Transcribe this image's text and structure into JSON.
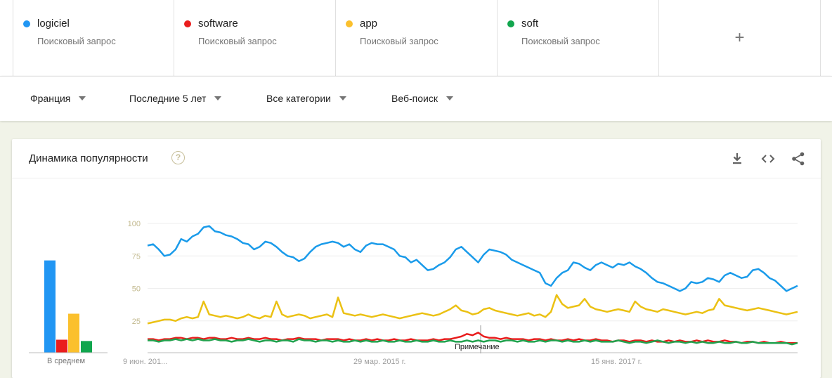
{
  "terms": [
    {
      "name": "logiciel",
      "type": "Поисковый запрос",
      "color": "#2196f3"
    },
    {
      "name": "software",
      "type": "Поисковый запрос",
      "color": "#ea1d1d"
    },
    {
      "name": "app",
      "type": "Поисковый запрос",
      "color": "#fbc02d"
    },
    {
      "name": "soft",
      "type": "Поисковый запрос",
      "color": "#11a64e"
    }
  ],
  "add_term": "+",
  "filters": {
    "region": "Франция",
    "period": "Последние 5 лет",
    "category": "Все категории",
    "search_type": "Веб-поиск"
  },
  "card": {
    "title": "Динамика популярности",
    "help": "?",
    "tools": [
      "download-icon",
      "embed-code-icon",
      "share-icon"
    ]
  },
  "average": {
    "label": "В среднем",
    "values": [
      71,
      10,
      30,
      9
    ]
  },
  "chart_data": {
    "type": "line",
    "y_ticks": [
      "100",
      "75",
      "50",
      "25"
    ],
    "ylim": [
      0,
      100
    ],
    "x_ticks": [
      "9 июн. 201...",
      "29 мар. 2015 г.",
      "15 янв. 2017 г."
    ],
    "annotation": "Примечание",
    "grid": true,
    "series": [
      {
        "color": "#1a9bea",
        "values": [
          83,
          84,
          80,
          75,
          76,
          80,
          88,
          86,
          90,
          92,
          97,
          98,
          94,
          93,
          91,
          90,
          88,
          85,
          84,
          80,
          82,
          86,
          85,
          82,
          78,
          75,
          74,
          71,
          73,
          78,
          82,
          84,
          85,
          86,
          85,
          82,
          84,
          80,
          78,
          83,
          85,
          84,
          84,
          82,
          80,
          75,
          74,
          70,
          72,
          68,
          64,
          65,
          68,
          70,
          74,
          80,
          82,
          78,
          74,
          70,
          76,
          80,
          79,
          78,
          76,
          72,
          70,
          68,
          66,
          64,
          62,
          54,
          52,
          58,
          62,
          64,
          70,
          69,
          66,
          64,
          68,
          70,
          68,
          66,
          69,
          68,
          70,
          67,
          65,
          62,
          58,
          55,
          54,
          52,
          50,
          48,
          50,
          55,
          54,
          55,
          58,
          57,
          55,
          60,
          62,
          60,
          58,
          59,
          64,
          65,
          62,
          58,
          56,
          52,
          48,
          50,
          52
        ]
      },
      {
        "color": "#ebc114",
        "values": [
          23,
          24,
          25,
          26,
          26,
          25,
          27,
          28,
          27,
          28,
          40,
          30,
          29,
          28,
          29,
          28,
          27,
          28,
          30,
          28,
          27,
          29,
          28,
          40,
          30,
          28,
          29,
          30,
          29,
          27,
          28,
          29,
          30,
          28,
          43,
          31,
          30,
          29,
          30,
          29,
          28,
          29,
          30,
          29,
          28,
          27,
          28,
          29,
          30,
          31,
          30,
          29,
          30,
          32,
          34,
          37,
          33,
          32,
          30,
          31,
          34,
          35,
          33,
          32,
          31,
          30,
          29,
          30,
          31,
          29,
          30,
          28,
          32,
          45,
          38,
          35,
          36,
          37,
          42,
          36,
          34,
          33,
          32,
          33,
          34,
          33,
          32,
          40,
          36,
          34,
          33,
          32,
          34,
          33,
          32,
          31,
          30,
          31,
          32,
          31,
          33,
          34,
          42,
          37,
          36,
          35,
          34,
          33,
          34,
          35,
          34,
          33,
          32,
          31,
          30,
          31,
          32
        ]
      },
      {
        "color": "#e81c1c",
        "values": [
          11,
          11,
          10,
          11,
          11,
          12,
          12,
          11,
          12,
          12,
          11,
          12,
          12,
          11,
          11,
          12,
          11,
          11,
          12,
          11,
          11,
          12,
          11,
          11,
          10,
          11,
          11,
          12,
          11,
          11,
          11,
          10,
          11,
          11,
          11,
          10,
          11,
          10,
          10,
          11,
          10,
          11,
          10,
          10,
          11,
          10,
          10,
          11,
          10,
          10,
          10,
          11,
          10,
          11,
          11,
          12,
          13,
          15,
          14,
          16,
          13,
          12,
          12,
          11,
          12,
          11,
          11,
          11,
          10,
          11,
          11,
          10,
          11,
          10,
          10,
          11,
          10,
          11,
          10,
          10,
          11,
          10,
          10,
          9,
          10,
          10,
          9,
          10,
          10,
          9,
          10,
          9,
          9,
          10,
          9,
          10,
          9,
          9,
          10,
          9,
          10,
          9,
          9,
          10,
          9,
          9,
          8,
          9,
          9,
          8,
          9,
          8,
          8,
          9,
          8,
          8,
          8
        ]
      },
      {
        "color": "#22a24e",
        "values": [
          10,
          10,
          9,
          10,
          10,
          11,
          10,
          11,
          10,
          11,
          10,
          10,
          11,
          10,
          10,
          9,
          10,
          10,
          11,
          10,
          9,
          10,
          10,
          9,
          10,
          10,
          9,
          11,
          10,
          10,
          9,
          10,
          10,
          9,
          10,
          9,
          9,
          10,
          9,
          10,
          9,
          9,
          10,
          9,
          9,
          10,
          9,
          9,
          10,
          9,
          9,
          10,
          9,
          9,
          10,
          9,
          9,
          10,
          9,
          10,
          9,
          10,
          10,
          9,
          10,
          10,
          9,
          10,
          9,
          9,
          10,
          9,
          10,
          10,
          9,
          10,
          9,
          9,
          10,
          9,
          10,
          9,
          9,
          9,
          10,
          9,
          8,
          9,
          9,
          8,
          9,
          10,
          9,
          8,
          9,
          9,
          8,
          9,
          8,
          9,
          8,
          8,
          9,
          8,
          8,
          9,
          8,
          8,
          9,
          8,
          8,
          8,
          8,
          8,
          8,
          7,
          8
        ]
      }
    ]
  }
}
